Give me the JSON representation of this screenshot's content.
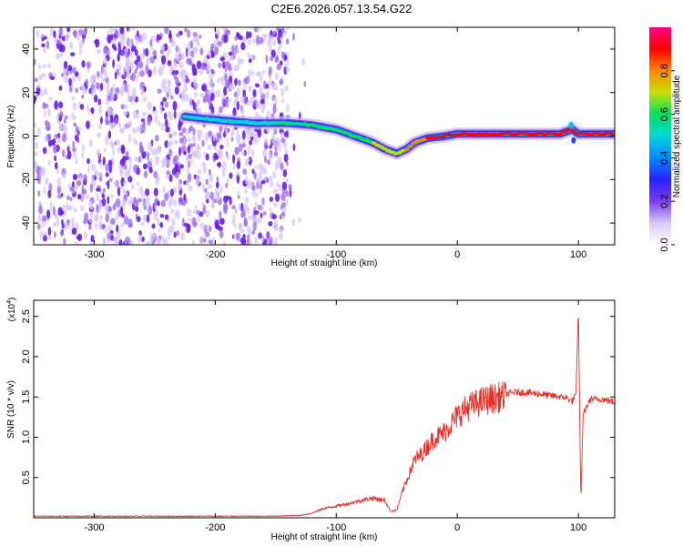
{
  "title": "C2E6.2026.057.13.54.G22",
  "chart_data": [
    {
      "type": "heatmap",
      "name": "spectrogram",
      "xlabel": "Height of straight line (km)",
      "ylabel": "Frequency (Hz)",
      "xlim": [
        -350,
        130
      ],
      "ylim": [
        -50,
        50
      ],
      "xticks": [
        -300,
        -200,
        -100,
        0,
        100
      ],
      "yticks": [
        -40,
        -20,
        0,
        20,
        40
      ],
      "colorbar": {
        "label": "Normalized spectral amplitude",
        "range": [
          0,
          1
        ],
        "ticks": [
          "0.0",
          "0.2",
          "0.4",
          "0.6",
          "0.8"
        ],
        "colors": [
          "#ffffff",
          "#d9c8f5",
          "#7a3cf0",
          "#2a20ff",
          "#0088ff",
          "#00d8d8",
          "#00e060",
          "#c8e000",
          "#ff8800",
          "#ff0000",
          "#ff0088"
        ]
      },
      "noise_region_km": [
        -350,
        -140
      ],
      "ridge": {
        "x": [
          -225,
          -210,
          -190,
          -170,
          -150,
          -140,
          -120,
          -100,
          -85,
          -70,
          -60,
          -50,
          -42,
          -35,
          -25,
          -10,
          0,
          30,
          60,
          85,
          95,
          100,
          130
        ],
        "freq": [
          9,
          8,
          7,
          6,
          6,
          6,
          5,
          3,
          0,
          -3,
          -6,
          -8,
          -6,
          -3,
          -1,
          0,
          1,
          1,
          1,
          1,
          3,
          1,
          1
        ],
        "amplitude": [
          0.45,
          0.45,
          0.5,
          0.5,
          0.55,
          0.6,
          0.6,
          0.6,
          0.6,
          0.65,
          0.7,
          0.7,
          0.75,
          0.8,
          0.85,
          0.9,
          0.9,
          0.9,
          0.9,
          0.9,
          0.85,
          0.9,
          0.9
        ]
      }
    },
    {
      "type": "line",
      "name": "snr",
      "xlabel": "Height of straight line (km)",
      "ylabel": "SNR (10 * v/v)",
      "multiplier": "(x10",
      "multiplier_exp": "4",
      "xlim": [
        -350,
        130
      ],
      "ylim": [
        0,
        2.7
      ],
      "xticks": [
        -300,
        -200,
        -100,
        0,
        100
      ],
      "yticks": [
        "0.5",
        "1.0",
        "1.5",
        "2.0",
        "2.5"
      ],
      "color": "#e8302a",
      "envelope": {
        "x": [
          -350,
          -300,
          -250,
          -200,
          -150,
          -130,
          -120,
          -110,
          -100,
          -90,
          -80,
          -70,
          -60,
          -55,
          -50,
          -45,
          -40,
          -35,
          -30,
          -25,
          -20,
          -15,
          -10,
          -5,
          0,
          10,
          20,
          30,
          40,
          50,
          60,
          70,
          80,
          90,
          95,
          98,
          100,
          102,
          104,
          110,
          120,
          130
        ],
        "y": [
          0.02,
          0.02,
          0.02,
          0.02,
          0.02,
          0.03,
          0.06,
          0.12,
          0.15,
          0.18,
          0.22,
          0.25,
          0.22,
          0.08,
          0.1,
          0.35,
          0.55,
          0.75,
          0.8,
          0.9,
          1.0,
          1.05,
          1.1,
          1.2,
          1.3,
          1.42,
          1.48,
          1.52,
          1.55,
          1.57,
          1.56,
          1.54,
          1.52,
          1.5,
          1.45,
          1.55,
          2.6,
          0.2,
          1.3,
          1.48,
          1.48,
          1.44
        ]
      },
      "noise_amplitude": 0.45
    }
  ]
}
